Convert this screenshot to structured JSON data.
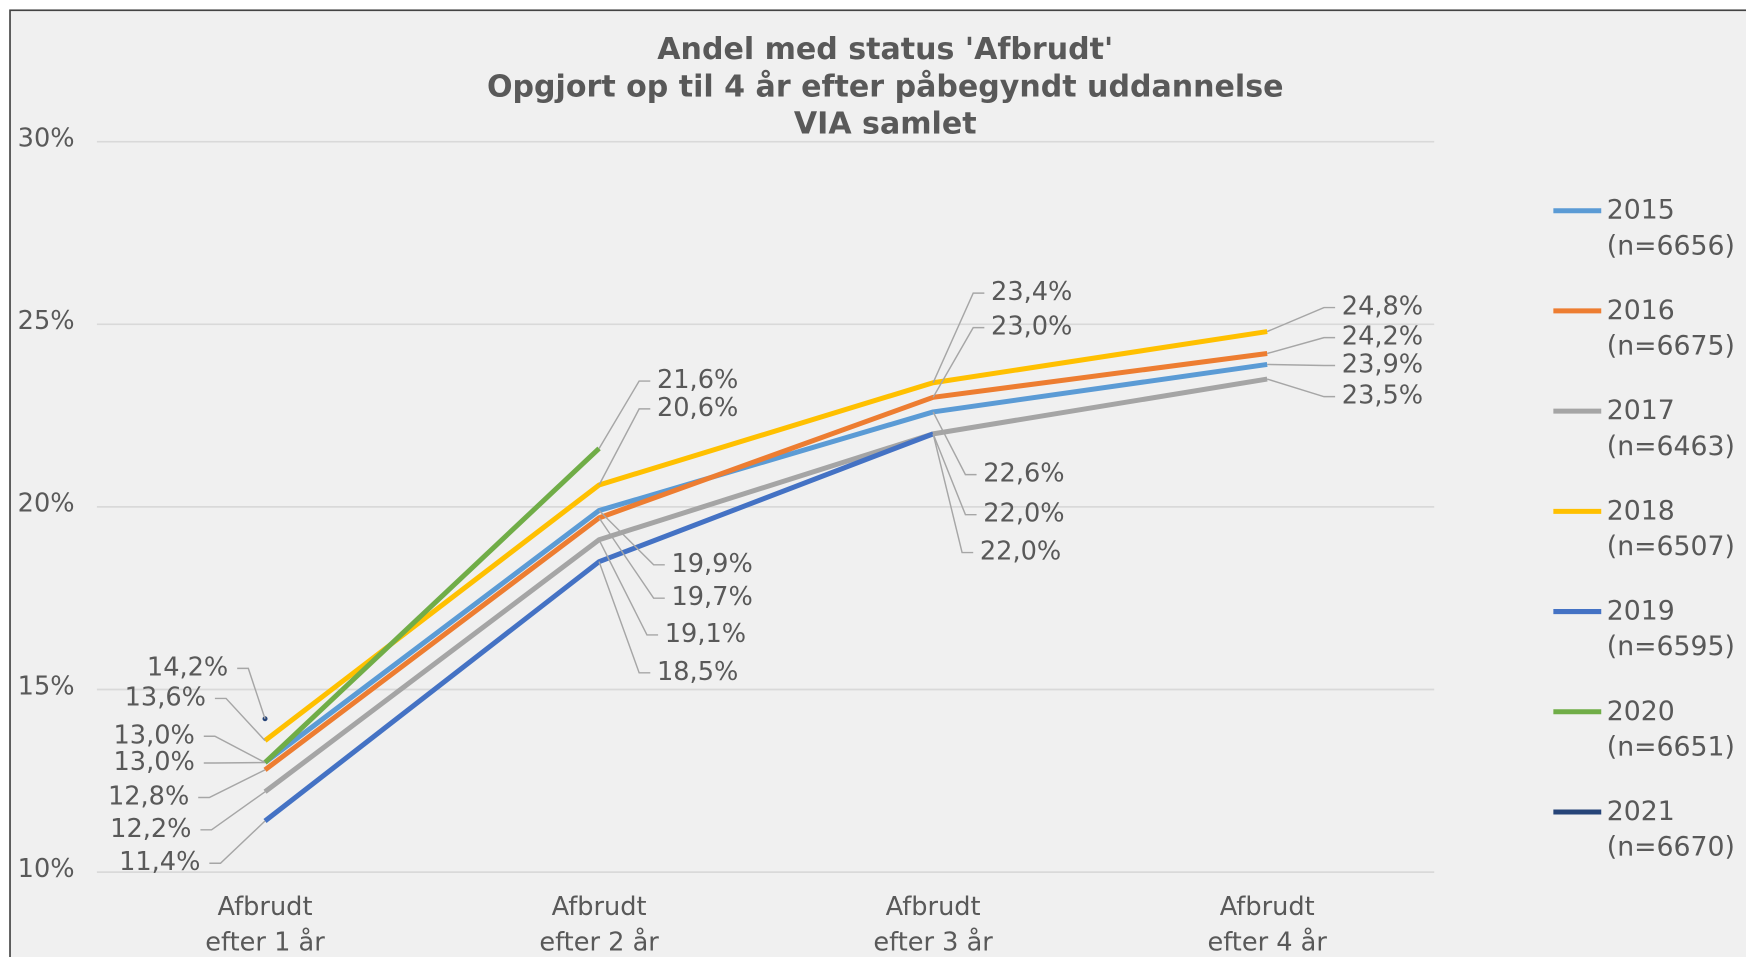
{
  "chart_data": {
    "type": "line",
    "title": [
      "Andel med status 'Afbrudt'",
      "Opgjort op til 4 år efter påbegyndt uddannelse",
      "VIA samlet"
    ],
    "categories": [
      "Afbrudt efter 1 år",
      "Afbrudt efter 2 år",
      "Afbrudt efter 3 år",
      "Afbrudt efter 4 år"
    ],
    "ylim": [
      10,
      30
    ],
    "yticks": [
      {
        "value": 10,
        "label": "10%"
      },
      {
        "value": 15,
        "label": "15%"
      },
      {
        "value": 20,
        "label": "20%"
      },
      {
        "value": 25,
        "label": "25%"
      },
      {
        "value": 30,
        "label": "30%"
      }
    ],
    "grid": true,
    "legend": "right",
    "series": [
      {
        "name": "2015 (n=6656)",
        "color": "#5b9bd5",
        "values": [
          13.0,
          19.9,
          22.6,
          23.9
        ],
        "value_labels": [
          "13,0%",
          "19,9%",
          "22,6%",
          "23,9%"
        ]
      },
      {
        "name": "2016 (n=6675)",
        "color": "#ed7d31",
        "values": [
          12.8,
          19.7,
          23.0,
          24.2
        ],
        "value_labels": [
          "12,8%",
          "19,7%",
          "23,0%",
          "24,2%"
        ]
      },
      {
        "name": "2017 (n=6463)",
        "color": "#a5a5a5",
        "values": [
          12.2,
          19.1,
          22.0,
          23.5
        ],
        "value_labels": [
          "12,2%",
          "19,1%",
          "22,0%",
          "23,5%"
        ]
      },
      {
        "name": "2018 (n=6507)",
        "color": "#ffc000",
        "values": [
          13.6,
          20.6,
          23.4,
          24.8
        ],
        "value_labels": [
          "13,6%",
          "20,6%",
          "23,4%",
          "24,8%"
        ]
      },
      {
        "name": "2019 (n=6595)",
        "color": "#4472c4",
        "values": [
          11.4,
          18.5,
          22.0,
          null
        ],
        "value_labels": [
          "11,4%",
          "18,5%",
          "22,0%",
          null
        ]
      },
      {
        "name": "2020 (n=6651)",
        "color": "#70ad47",
        "values": [
          13.0,
          21.6,
          null,
          null
        ],
        "value_labels": [
          "13,0%",
          "21,6%",
          null,
          null
        ]
      },
      {
        "name": "2021 (n=6670)",
        "color": "#264478",
        "values": [
          14.2,
          null,
          null,
          null
        ],
        "value_labels": [
          "14,2%",
          null,
          null,
          null
        ]
      }
    ]
  }
}
